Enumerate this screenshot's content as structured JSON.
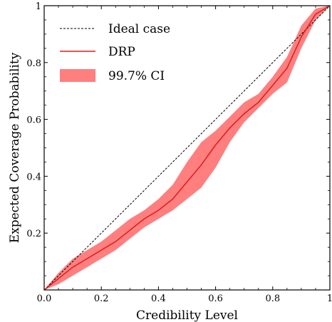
{
  "chart_data": {
    "type": "line",
    "xlabel": "Credibility Level",
    "ylabel": "Expected Coverage Probability",
    "xlim": [
      0,
      1
    ],
    "ylim": [
      0,
      1
    ],
    "x_ticks": [
      0,
      0.2,
      0.4,
      0.6,
      0.8,
      1
    ],
    "x_tick_labels": [
      "0.0",
      "0.2",
      "0.4",
      "0.6",
      "0.8",
      "1"
    ],
    "y_ticks": [
      0.2,
      0.4,
      0.6,
      0.8,
      1
    ],
    "y_tick_labels": [
      "0.2",
      "0.4",
      "0.6",
      "0.8",
      "1"
    ],
    "grid": false,
    "legend_position": "top-left",
    "legend": [
      "Ideal case",
      "DRP",
      "99.7% CI"
    ],
    "colors": {
      "drp": "#dd1c1c",
      "ci": "#ff7f7f",
      "ideal": "#000000"
    },
    "series": [
      {
        "name": "Ideal case",
        "style": "dashed",
        "x": [
          0,
          1
        ],
        "y": [
          0,
          1
        ]
      },
      {
        "name": "DRP",
        "x": [
          0,
          0.05,
          0.1,
          0.15,
          0.2,
          0.25,
          0.3,
          0.35,
          0.4,
          0.45,
          0.5,
          0.55,
          0.6,
          0.65,
          0.7,
          0.75,
          0.8,
          0.85,
          0.9,
          0.95,
          1.0
        ],
        "y": [
          0,
          0.04,
          0.08,
          0.11,
          0.14,
          0.17,
          0.21,
          0.25,
          0.28,
          0.32,
          0.38,
          0.44,
          0.51,
          0.57,
          0.62,
          0.66,
          0.72,
          0.78,
          0.89,
          0.97,
          1.0
        ]
      },
      {
        "name": "99.7% CI",
        "type": "band",
        "x": [
          0,
          0.05,
          0.1,
          0.15,
          0.2,
          0.25,
          0.3,
          0.35,
          0.4,
          0.45,
          0.5,
          0.55,
          0.6,
          0.65,
          0.7,
          0.75,
          0.8,
          0.85,
          0.9,
          0.95,
          1.0
        ],
        "lower": [
          0,
          0.02,
          0.05,
          0.08,
          0.11,
          0.14,
          0.18,
          0.22,
          0.25,
          0.28,
          0.32,
          0.36,
          0.43,
          0.52,
          0.59,
          0.64,
          0.69,
          0.73,
          0.85,
          0.95,
          1.0
        ],
        "upper": [
          0,
          0.06,
          0.11,
          0.14,
          0.17,
          0.21,
          0.25,
          0.28,
          0.32,
          0.37,
          0.45,
          0.52,
          0.56,
          0.61,
          0.66,
          0.69,
          0.75,
          0.82,
          0.93,
          0.99,
          1.0
        ]
      }
    ]
  }
}
